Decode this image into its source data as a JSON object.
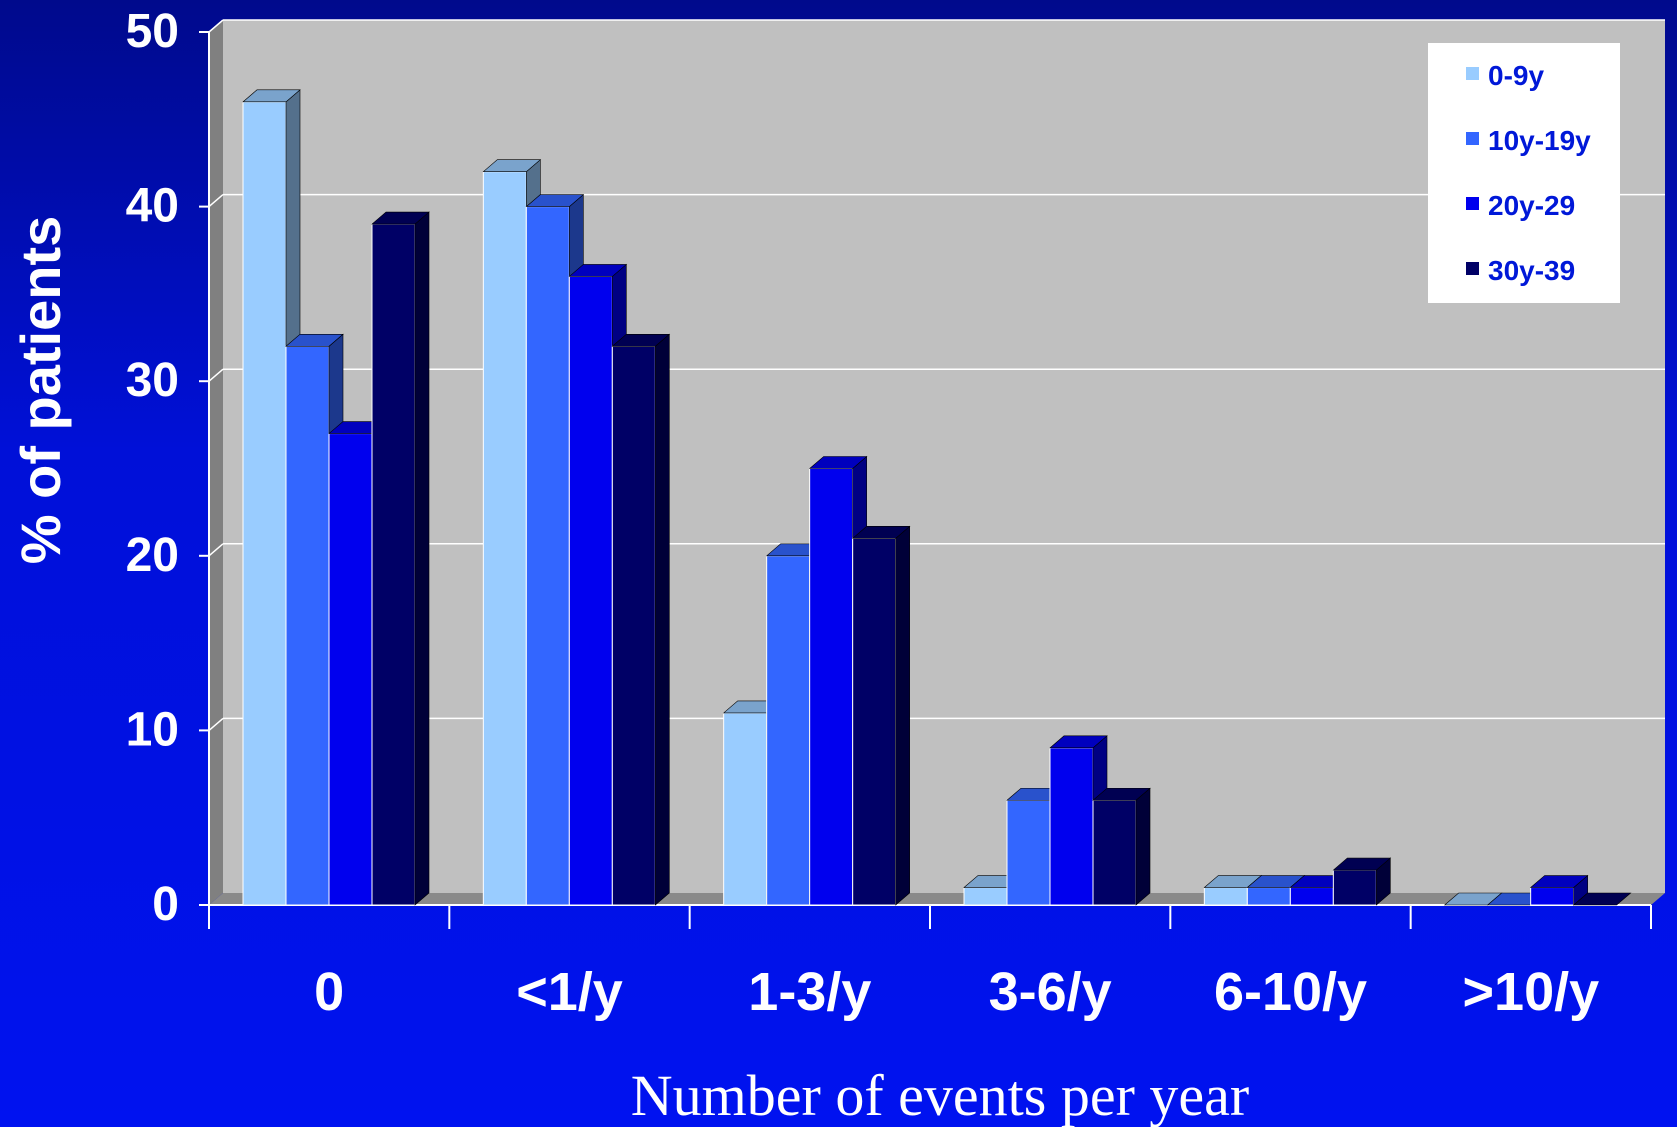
{
  "chart_data": {
    "type": "bar",
    "title": "",
    "xlabel": "Number of events per year",
    "ylabel": "% of patients",
    "categories": [
      "0",
      "<1/y",
      "1-3/y",
      "3-6/y",
      "6-10/y",
      ">10/y"
    ],
    "ylim": [
      0,
      50
    ],
    "yticks": [
      0,
      10,
      20,
      30,
      40,
      50
    ],
    "grid": true,
    "legend_position": "top-right",
    "series": [
      {
        "name": "0-9y",
        "color": "#99ccff",
        "values": [
          46,
          42,
          11,
          1,
          1,
          0
        ]
      },
      {
        "name": "10y-19y",
        "color": "#3366ff",
        "values": [
          32,
          40,
          20,
          6,
          1,
          0
        ]
      },
      {
        "name": "20y-29",
        "color": "#0000ee",
        "values": [
          27,
          36,
          25,
          9,
          1,
          1
        ]
      },
      {
        "name": "30y-39",
        "color": "#000066",
        "values": [
          39,
          32,
          21,
          6,
          2,
          0
        ]
      }
    ]
  },
  "colors": {
    "background": "#0010d8",
    "plot_area": "#c0c0c0",
    "gridline": "#ffffff",
    "axis_text": "#ffffff",
    "legend_text": "#0018d8"
  }
}
